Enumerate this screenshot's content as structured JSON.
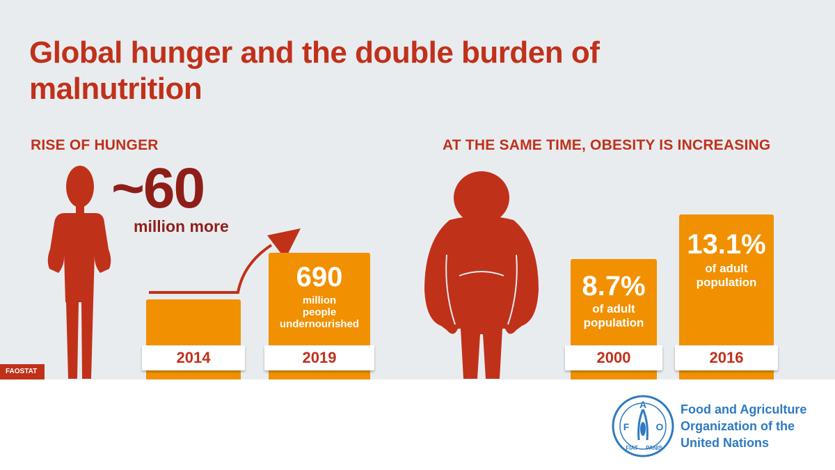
{
  "title": "Global hunger and the double burden of malnutrition",
  "hunger": {
    "heading": "RISE OF HUNGER",
    "increase_value": "~60",
    "increase_label": "million more",
    "bars": [
      {
        "year": "2014",
        "value": "",
        "desc": []
      },
      {
        "year": "2019",
        "value": "690",
        "desc": [
          "million",
          "people",
          "undernourished"
        ]
      }
    ]
  },
  "obesity": {
    "heading": "AT THE SAME TIME, OBESITY IS INCREASING",
    "bars": [
      {
        "year": "2000",
        "value": "8.7%",
        "desc": [
          "of adult",
          "population"
        ]
      },
      {
        "year": "2016",
        "value": "13.1%",
        "desc": [
          "of adult",
          "population"
        ]
      }
    ]
  },
  "source_badge": "FAOSTAT",
  "fao": {
    "name_lines": [
      "Food and Agriculture",
      "Organization of the",
      "United Nations"
    ],
    "emblem_letters": [
      "F",
      "A",
      "O"
    ],
    "emblem_motto": [
      "FIAT",
      "PANIS"
    ]
  },
  "colors": {
    "title_red": "#c0311a",
    "dark_red": "#8e1f18",
    "bar_orange": "#f19000",
    "background": "#e9ecef",
    "fao_blue": "#2e7ac0"
  },
  "icons": [
    "thin-person-icon",
    "obese-person-icon",
    "trend-arrow-icon",
    "fao-emblem-icon"
  ]
}
